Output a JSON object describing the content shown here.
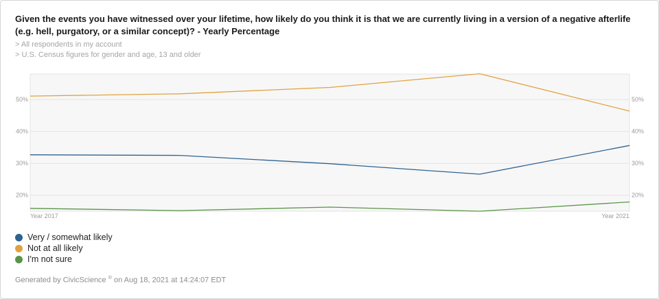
{
  "title": "Given the events you have witnessed over your lifetime, how likely do you think it is that we are currently living in a version of a negative afterlife (e.g. hell, purgatory, or a similar concept)? - Yearly Percentage",
  "filters": [
    "> All respondents in my account",
    "> U.S. Census figures for gender and age, 13 and older"
  ],
  "footer": {
    "prefix": "Generated by CivicScience",
    "reg": "®",
    "suffix": " on Aug 18, 2021 at 14:24:07 EDT"
  },
  "chart_data": {
    "type": "line",
    "x": [
      2017,
      2018,
      2019,
      2020,
      2021
    ],
    "x_tick_labels": [
      "Year 2017",
      "Year 2021"
    ],
    "y_ticks": [
      20,
      30,
      40,
      50
    ],
    "y_tick_labels": [
      "20%",
      "30%",
      "40%",
      "50%"
    ],
    "ylim": [
      15,
      58
    ],
    "grid": true,
    "legend_position": "bottom-left",
    "series": [
      {
        "name": "Very / somewhat likely",
        "color": "#2e6291",
        "values": [
          32.7,
          32.5,
          29.9,
          26.6,
          35.6
        ]
      },
      {
        "name": "Not at all likely",
        "color": "#e0a23f",
        "values": [
          51.1,
          51.8,
          53.8,
          58.1,
          46.4
        ]
      },
      {
        "name": "I'm not sure",
        "color": "#5a9447",
        "values": [
          15.9,
          15.2,
          16.3,
          15.0,
          17.9
        ]
      }
    ]
  }
}
